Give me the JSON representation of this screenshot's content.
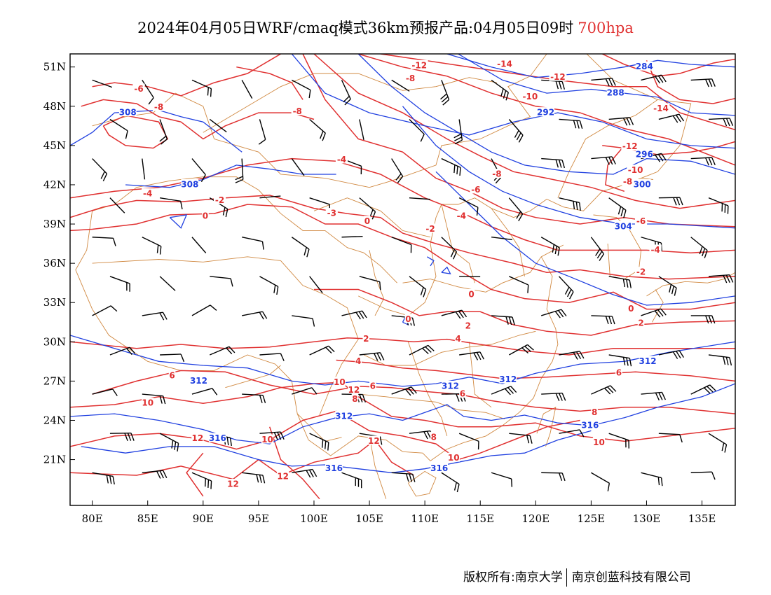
{
  "title": {
    "main": "2024年04月05日WRF/cmaq模式36km预报产品:04月05日09时",
    "level": "700hpa"
  },
  "colors": {
    "temperature": "#e03030",
    "height": "#2040e0",
    "border": "#d08840",
    "wind": "#000000"
  },
  "axes": {
    "lon_range": [
      78,
      138
    ],
    "lat_range": [
      17.5,
      52
    ],
    "x_ticks": [
      "80E",
      "85E",
      "90E",
      "95E",
      "100E",
      "105E",
      "110E",
      "115E",
      "120E",
      "125E",
      "130E",
      "135E"
    ],
    "x_values": [
      80,
      85,
      90,
      95,
      100,
      105,
      110,
      115,
      120,
      125,
      130,
      135
    ],
    "y_ticks": [
      "51N",
      "48N",
      "45N",
      "42N",
      "39N",
      "36N",
      "33N",
      "30N",
      "27N",
      "24N",
      "21N"
    ],
    "y_values": [
      51,
      48,
      45,
      42,
      39,
      36,
      33,
      30,
      27,
      24,
      21
    ]
  },
  "temperature_labels": [
    {
      "text": "-12",
      "lon": 109.5,
      "lat": 51.1
    },
    {
      "text": "-8",
      "lon": 108.7,
      "lat": 50.1
    },
    {
      "text": "-14",
      "lon": 117.2,
      "lat": 51.2
    },
    {
      "text": "-12",
      "lon": 122.0,
      "lat": 50.2
    },
    {
      "text": "-10",
      "lon": 119.5,
      "lat": 48.7
    },
    {
      "text": "-6",
      "lon": 84.2,
      "lat": 49.3
    },
    {
      "text": "-8",
      "lon": 86.0,
      "lat": 47.9
    },
    {
      "text": "-8",
      "lon": 98.5,
      "lat": 47.6
    },
    {
      "text": "-14",
      "lon": 131.3,
      "lat": 47.8
    },
    {
      "text": "-12",
      "lon": 128.5,
      "lat": 44.9
    },
    {
      "text": "-10",
      "lon": 129.0,
      "lat": 43.1
    },
    {
      "text": "-8",
      "lon": 128.3,
      "lat": 42.2
    },
    {
      "text": "-8",
      "lon": 116.5,
      "lat": 42.8
    },
    {
      "text": "-6",
      "lon": 114.6,
      "lat": 41.6
    },
    {
      "text": "-4",
      "lon": 102.5,
      "lat": 43.9
    },
    {
      "text": "-4",
      "lon": 85.0,
      "lat": 41.3
    },
    {
      "text": "-2",
      "lon": 91.5,
      "lat": 40.8
    },
    {
      "text": "-4",
      "lon": 113.3,
      "lat": 39.6
    },
    {
      "text": "-3",
      "lon": 101.6,
      "lat": 39.8
    },
    {
      "text": "-6",
      "lon": 129.5,
      "lat": 39.2
    },
    {
      "text": "0",
      "lon": 90.2,
      "lat": 39.6
    },
    {
      "text": "0",
      "lon": 104.8,
      "lat": 39.2
    },
    {
      "text": "-2",
      "lon": 110.5,
      "lat": 38.6
    },
    {
      "text": "-4",
      "lon": 130.8,
      "lat": 37.0
    },
    {
      "text": "-2",
      "lon": 129.5,
      "lat": 35.3
    },
    {
      "text": "0",
      "lon": 114.2,
      "lat": 33.6
    },
    {
      "text": "0",
      "lon": 108.5,
      "lat": 31.7
    },
    {
      "text": "0",
      "lon": 128.6,
      "lat": 32.5
    },
    {
      "text": "2",
      "lon": 113.9,
      "lat": 31.2
    },
    {
      "text": "2",
      "lon": 129.5,
      "lat": 31.4
    },
    {
      "text": "2",
      "lon": 104.7,
      "lat": 30.2
    },
    {
      "text": "4",
      "lon": 113.0,
      "lat": 30.2
    },
    {
      "text": "4",
      "lon": 104.0,
      "lat": 28.5
    },
    {
      "text": "6",
      "lon": 87.2,
      "lat": 27.4
    },
    {
      "text": "6",
      "lon": 105.3,
      "lat": 26.6
    },
    {
      "text": "6",
      "lon": 113.4,
      "lat": 26.0
    },
    {
      "text": "6",
      "lon": 127.5,
      "lat": 27.6
    },
    {
      "text": "8",
      "lon": 103.7,
      "lat": 25.6
    },
    {
      "text": "8",
      "lon": 125.3,
      "lat": 24.6
    },
    {
      "text": "10",
      "lon": 102.3,
      "lat": 26.9
    },
    {
      "text": "10",
      "lon": 85.0,
      "lat": 25.3
    },
    {
      "text": "10",
      "lon": 95.8,
      "lat": 22.5
    },
    {
      "text": "10",
      "lon": 112.6,
      "lat": 21.1
    },
    {
      "text": "10",
      "lon": 125.7,
      "lat": 22.3
    },
    {
      "text": "12",
      "lon": 103.6,
      "lat": 26.3
    },
    {
      "text": "12",
      "lon": 89.5,
      "lat": 22.6
    },
    {
      "text": "12",
      "lon": 105.4,
      "lat": 22.4
    },
    {
      "text": "12",
      "lon": 97.2,
      "lat": 19.7
    },
    {
      "text": "12",
      "lon": 92.7,
      "lat": 19.1
    },
    {
      "text": "8",
      "lon": 110.8,
      "lat": 22.7
    }
  ],
  "height_labels": [
    {
      "text": "284",
      "lon": 129.8,
      "lat": 51.0
    },
    {
      "text": "288",
      "lon": 127.2,
      "lat": 49.0
    },
    {
      "text": "292",
      "lon": 120.9,
      "lat": 47.5
    },
    {
      "text": "308",
      "lon": 83.2,
      "lat": 47.5
    },
    {
      "text": "308",
      "lon": 88.8,
      "lat": 42.0
    },
    {
      "text": "296",
      "lon": 129.8,
      "lat": 44.3
    },
    {
      "text": "300",
      "lon": 129.6,
      "lat": 42.0
    },
    {
      "text": "304",
      "lon": 127.9,
      "lat": 38.8
    },
    {
      "text": "312",
      "lon": 89.6,
      "lat": 27.0
    },
    {
      "text": "312",
      "lon": 112.3,
      "lat": 26.6
    },
    {
      "text": "312",
      "lon": 117.5,
      "lat": 27.1
    },
    {
      "text": "312",
      "lon": 130.1,
      "lat": 28.5
    },
    {
      "text": "312",
      "lon": 102.7,
      "lat": 24.3
    },
    {
      "text": "316",
      "lon": 91.3,
      "lat": 22.6
    },
    {
      "text": "316",
      "lon": 124.9,
      "lat": 23.6
    },
    {
      "text": "316",
      "lon": 101.8,
      "lat": 20.3
    },
    {
      "text": "316",
      "lon": 111.3,
      "lat": 20.3
    }
  ],
  "footer": {
    "left": "版权所有:南京大学",
    "right": "南京创蓝科技有限公司"
  }
}
